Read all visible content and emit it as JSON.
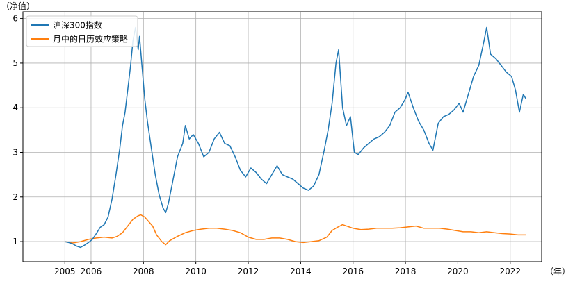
{
  "chart_data": {
    "type": "line",
    "title": "",
    "ylabel": "（净值）",
    "xlabel": "（年）",
    "ylim": [
      0.55,
      6.15
    ],
    "xlim": [
      2003.4,
      2023.2
    ],
    "x_ticks": [
      {
        "value": 2005,
        "label": "2005"
      },
      {
        "value": 2006,
        "label": "2006"
      },
      {
        "value": 2008,
        "label": "2008"
      },
      {
        "value": 2010,
        "label": "2010"
      },
      {
        "value": 2012,
        "label": "2012"
      },
      {
        "value": 2014,
        "label": "2014"
      },
      {
        "value": 2016,
        "label": "2016"
      },
      {
        "value": 2018,
        "label": "2018"
      },
      {
        "value": 2020,
        "label": "2020"
      },
      {
        "value": 2022,
        "label": "2022"
      }
    ],
    "y_ticks": [
      1,
      2,
      3,
      4,
      5,
      6
    ],
    "grid": true,
    "legend_position": "top-left",
    "series": [
      {
        "name": "沪深300指数",
        "color": "#1f77b4",
        "x": [
          2005.0,
          2005.15,
          2005.3,
          2005.45,
          2005.6,
          2005.75,
          2005.9,
          2006.05,
          2006.2,
          2006.35,
          2006.5,
          2006.65,
          2006.8,
          2006.95,
          2007.1,
          2007.2,
          2007.3,
          2007.4,
          2007.5,
          2007.6,
          2007.7,
          2007.8,
          2007.85,
          2007.95,
          2008.05,
          2008.15,
          2008.3,
          2008.45,
          2008.6,
          2008.75,
          2008.85,
          2008.95,
          2009.1,
          2009.3,
          2009.5,
          2009.6,
          2009.75,
          2009.9,
          2010.1,
          2010.3,
          2010.5,
          2010.7,
          2010.9,
          2011.1,
          2011.3,
          2011.5,
          2011.7,
          2011.9,
          2012.1,
          2012.3,
          2012.5,
          2012.7,
          2012.9,
          2013.1,
          2013.3,
          2013.5,
          2013.7,
          2013.9,
          2014.1,
          2014.3,
          2014.5,
          2014.7,
          2014.9,
          2015.05,
          2015.2,
          2015.35,
          2015.45,
          2015.6,
          2015.75,
          2015.9,
          2016.05,
          2016.2,
          2016.4,
          2016.6,
          2016.8,
          2017.0,
          2017.2,
          2017.4,
          2017.6,
          2017.8,
          2018.0,
          2018.1,
          2018.3,
          2018.5,
          2018.7,
          2018.9,
          2019.05,
          2019.25,
          2019.45,
          2019.65,
          2019.85,
          2020.05,
          2020.2,
          2020.4,
          2020.6,
          2020.8,
          2021.0,
          2021.1,
          2021.25,
          2021.45,
          2021.65,
          2021.85,
          2022.05,
          2022.2,
          2022.35,
          2022.5,
          2022.6
        ],
        "y": [
          1.0,
          0.98,
          0.95,
          0.9,
          0.87,
          0.92,
          0.98,
          1.05,
          1.18,
          1.32,
          1.38,
          1.55,
          1.95,
          2.5,
          3.1,
          3.6,
          3.9,
          4.4,
          4.9,
          5.5,
          5.8,
          5.3,
          5.6,
          4.9,
          4.2,
          3.7,
          3.1,
          2.5,
          2.05,
          1.75,
          1.65,
          1.85,
          2.3,
          2.9,
          3.2,
          3.6,
          3.3,
          3.4,
          3.2,
          2.9,
          3.0,
          3.3,
          3.45,
          3.2,
          3.15,
          2.9,
          2.6,
          2.45,
          2.65,
          2.55,
          2.4,
          2.3,
          2.5,
          2.7,
          2.5,
          2.45,
          2.4,
          2.3,
          2.2,
          2.15,
          2.25,
          2.5,
          3.05,
          3.5,
          4.1,
          5.0,
          5.3,
          4.0,
          3.6,
          3.8,
          3.0,
          2.95,
          3.1,
          3.2,
          3.3,
          3.35,
          3.45,
          3.6,
          3.9,
          4.0,
          4.2,
          4.35,
          4.0,
          3.7,
          3.5,
          3.2,
          3.05,
          3.65,
          3.8,
          3.85,
          3.95,
          4.1,
          3.9,
          4.3,
          4.7,
          4.95,
          5.5,
          5.8,
          5.2,
          5.1,
          4.95,
          4.8,
          4.7,
          4.4,
          3.9,
          4.3,
          4.2
        ]
      },
      {
        "name": "月中的日历效应策略",
        "color": "#ff7f0e",
        "x": [
          2005.0,
          2005.3,
          2005.6,
          2005.9,
          2006.2,
          2006.5,
          2006.8,
          2007.0,
          2007.2,
          2007.4,
          2007.6,
          2007.8,
          2007.9,
          2008.05,
          2008.2,
          2008.35,
          2008.5,
          2008.7,
          2008.85,
          2009.0,
          2009.3,
          2009.6,
          2009.9,
          2010.2,
          2010.5,
          2010.8,
          2011.1,
          2011.4,
          2011.7,
          2012.0,
          2012.3,
          2012.6,
          2012.9,
          2013.2,
          2013.5,
          2013.8,
          2014.1,
          2014.4,
          2014.7,
          2015.0,
          2015.2,
          2015.4,
          2015.6,
          2015.8,
          2016.0,
          2016.3,
          2016.6,
          2016.9,
          2017.2,
          2017.5,
          2017.8,
          2018.1,
          2018.4,
          2018.7,
          2019.0,
          2019.3,
          2019.6,
          2019.9,
          2020.2,
          2020.5,
          2020.8,
          2021.1,
          2021.4,
          2021.7,
          2022.0,
          2022.3,
          2022.6
        ],
        "y": [
          1.0,
          0.97,
          1.0,
          1.05,
          1.08,
          1.1,
          1.08,
          1.12,
          1.2,
          1.35,
          1.5,
          1.58,
          1.6,
          1.55,
          1.45,
          1.35,
          1.15,
          1.0,
          0.93,
          1.02,
          1.12,
          1.2,
          1.25,
          1.28,
          1.3,
          1.3,
          1.28,
          1.25,
          1.2,
          1.1,
          1.05,
          1.05,
          1.08,
          1.08,
          1.05,
          1.0,
          0.98,
          1.0,
          1.02,
          1.1,
          1.25,
          1.32,
          1.38,
          1.34,
          1.3,
          1.27,
          1.28,
          1.3,
          1.3,
          1.3,
          1.31,
          1.33,
          1.35,
          1.3,
          1.3,
          1.3,
          1.28,
          1.25,
          1.22,
          1.22,
          1.2,
          1.22,
          1.2,
          1.18,
          1.17,
          1.15,
          1.15
        ]
      }
    ]
  }
}
